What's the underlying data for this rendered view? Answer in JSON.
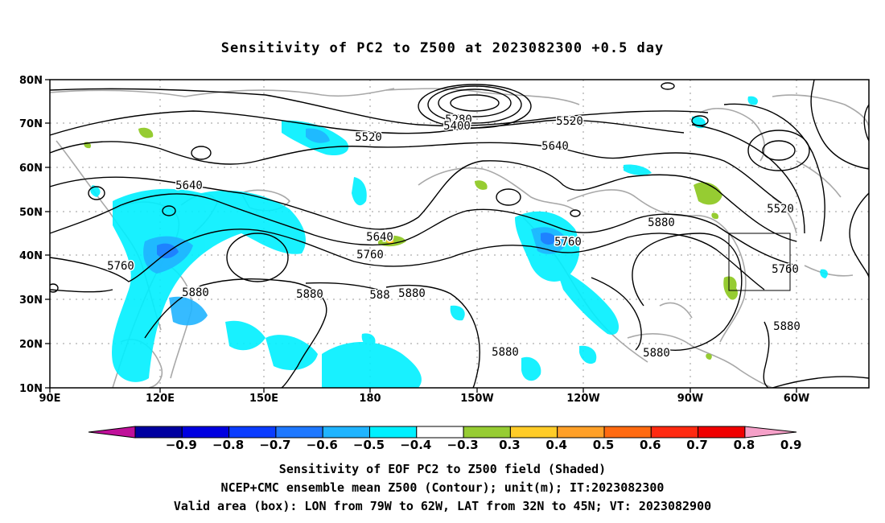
{
  "title": "Sensitivity of PC2 to Z500 at 2023082300 +0.5 day",
  "map": {
    "lon_labels": [
      "90E",
      "120E",
      "150E",
      "180",
      "150W",
      "120W",
      "90W",
      "60W"
    ],
    "lat_labels": [
      "80N",
      "70N",
      "60N",
      "50N",
      "40N",
      "30N",
      "20N",
      "10N"
    ],
    "contour_labels": [
      {
        "text": "5280"
      },
      {
        "text": "5400"
      },
      {
        "text": "5520"
      },
      {
        "text": "5520"
      },
      {
        "text": "5640"
      },
      {
        "text": "5640"
      },
      {
        "text": "5520"
      },
      {
        "text": "5880"
      },
      {
        "text": "5640"
      },
      {
        "text": "5760"
      },
      {
        "text": "5760"
      },
      {
        "text": "5760"
      },
      {
        "text": "5760"
      },
      {
        "text": "5880"
      },
      {
        "text": "5880"
      },
      {
        "text": "588"
      },
      {
        "text": "5880"
      },
      {
        "text": "5880"
      },
      {
        "text": "5880"
      },
      {
        "text": "5880"
      }
    ],
    "valid_box": {
      "lon_range": "79W to 62W",
      "lat_range": "32N to 45N"
    }
  },
  "colorbar": {
    "labels": [
      "-0.9",
      "-0.8",
      "-0.7",
      "-0.6",
      "-0.5",
      "-0.4",
      "-0.3",
      "0.3",
      "0.4",
      "0.5",
      "0.6",
      "0.7",
      "0.8",
      "0.9"
    ],
    "colors": [
      "#0000a0",
      "#0000e0",
      "#0a3cff",
      "#1e78ff",
      "#20b4ff",
      "#00f0ff",
      "#ffffff",
      "#96cc32",
      "#ffcc28",
      "#ffa028",
      "#ff6a10",
      "#ff2a10",
      "#f00000"
    ],
    "low_end_color": "#c0109a",
    "high_end_color": "#f5a0c8"
  },
  "captions": {
    "line1": "Sensitivity of EOF PC2 to Z500 field (Shaded)",
    "line2": "NCEP+CMC ensemble mean Z500 (Contour); unit(m); IT:2023082300",
    "line3": "Valid area (box): LON from 79W to 62W, LAT from 32N to 45N; VT: 2023082900"
  }
}
